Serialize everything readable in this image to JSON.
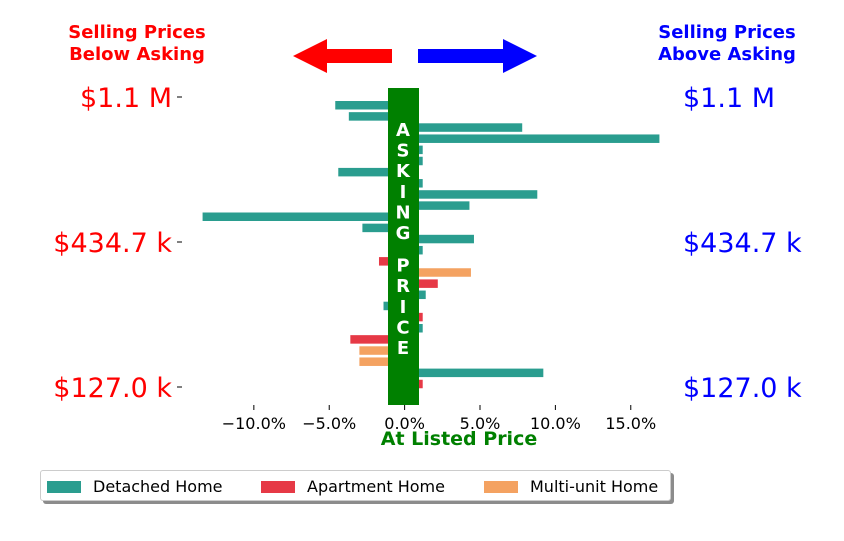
{
  "chart_data": {
    "type": "bar",
    "orientation": "horizontal",
    "xlabel": "At Listed Price",
    "x_ticks": [
      "−10.0%",
      "−5.0%",
      "0.0%",
      "5.0%",
      "10.0%",
      "15.0%"
    ],
    "x_tick_values": [
      -10,
      -5,
      0,
      5,
      10,
      15
    ],
    "xlim": [
      -14.5,
      18
    ],
    "annotations": {
      "left_heading": [
        "Selling Prices",
        "Below Asking"
      ],
      "right_heading": [
        "Selling Prices",
        "Above Asking"
      ],
      "center_label": "ASKING PRICE"
    },
    "y_labels_left": [
      "$1.1 M",
      "$434.7 k",
      "$127.0 k"
    ],
    "y_labels_right": [
      "$1.1 M",
      "$434.7 k",
      "$127.0 k"
    ],
    "series": [
      {
        "name": "Detached Home",
        "color": "#2a9d8f"
      },
      {
        "name": "Apartment Home",
        "color": "#e63946"
      },
      {
        "name": "Multi-unit Home",
        "color": "#f4a261"
      }
    ],
    "bars": [
      {
        "series": 0,
        "value": -4.6
      },
      {
        "series": 0,
        "value": -3.7
      },
      {
        "series": 0,
        "value": 7.8
      },
      {
        "series": 0,
        "value": 16.9
      },
      {
        "series": 0,
        "value": 1.2
      },
      {
        "series": 0,
        "value": 1.2
      },
      {
        "series": 0,
        "value": -4.4
      },
      {
        "series": 0,
        "value": 1.2
      },
      {
        "series": 0,
        "value": 8.8
      },
      {
        "series": 0,
        "value": 4.3
      },
      {
        "series": 0,
        "value": -13.4
      },
      {
        "series": 0,
        "value": -2.8
      },
      {
        "series": 0,
        "value": 4.6
      },
      {
        "series": 0,
        "value": 1.2
      },
      {
        "series": 1,
        "value": -1.7
      },
      {
        "series": 2,
        "value": 4.4
      },
      {
        "series": 1,
        "value": 2.2
      },
      {
        "series": 0,
        "value": 1.4
      },
      {
        "series": 0,
        "value": -1.4
      },
      {
        "series": 1,
        "value": 1.2
      },
      {
        "series": 0,
        "value": 1.2
      },
      {
        "series": 1,
        "value": -3.6
      },
      {
        "series": 2,
        "value": -3.0
      },
      {
        "series": 2,
        "value": -3.0
      },
      {
        "series": 0,
        "value": 9.2
      },
      {
        "series": 1,
        "value": 1.2
      }
    ],
    "colors": {
      "left_text": "#ff0000",
      "right_text": "#0000ff",
      "center": "#008000"
    },
    "legend": {
      "position": "bottom",
      "shadow": true
    }
  }
}
